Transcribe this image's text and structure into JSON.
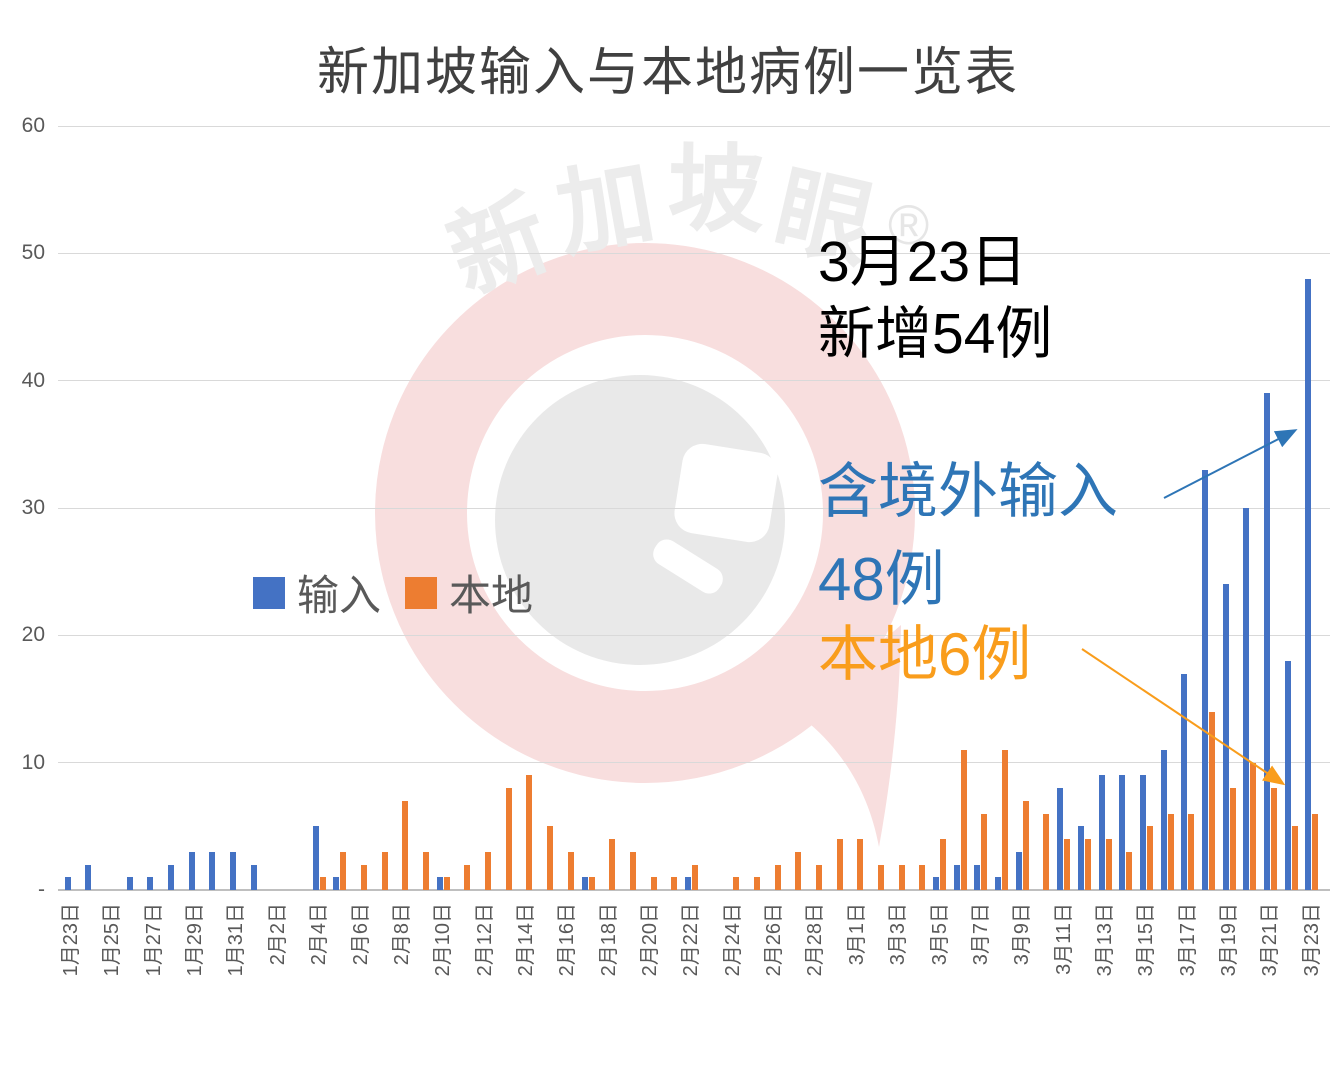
{
  "title": "新加坡输入与本地病例一览表",
  "colors": {
    "imported": "#4472C4",
    "local": "#ED7D31",
    "imported_annotation": "#2E75B6",
    "local_annotation": "#F99D1C",
    "axis_text": "#595959",
    "title_text": "#404040",
    "gridline": "#D9D9D9",
    "axis_line": "#BFBFBF",
    "watermark_pink": "#F8DEDE",
    "watermark_gray": "#E9E9E9",
    "watermark_text": "#ECECEC"
  },
  "legend": {
    "imported": "输入",
    "local": "本地"
  },
  "annotations": {
    "date_line1": "3月23日",
    "date_line2": "新增54例",
    "imported_line1": "含境外输入",
    "imported_line2": "48例",
    "local_line": "本地6例"
  },
  "watermark": {
    "char1": "新",
    "char2": "加",
    "char3": "坡",
    "char4": "眼",
    "registered": "®"
  },
  "chart_data": {
    "type": "bar",
    "title": "新加坡输入与本地病例一览表",
    "xlabel": "",
    "ylabel": "",
    "ylim": [
      0,
      60
    ],
    "grid": true,
    "legend_position": "center-left",
    "x_tick_every": 2,
    "yticks": [
      {
        "label": "60",
        "value": 60
      },
      {
        "label": "50",
        "value": 50
      },
      {
        "label": "40",
        "value": 40
      },
      {
        "label": "30",
        "value": 30
      },
      {
        "label": "20",
        "value": 20
      },
      {
        "label": "10",
        "value": 10
      },
      {
        "label": "-",
        "value": 0
      }
    ],
    "categories": [
      "1月23日",
      "1月24日",
      "1月25日",
      "1月26日",
      "1月27日",
      "1月28日",
      "1月29日",
      "1月30日",
      "1月31日",
      "2月1日",
      "2月2日",
      "2月3日",
      "2月4日",
      "2月5日",
      "2月6日",
      "2月7日",
      "2月8日",
      "2月9日",
      "2月10日",
      "2月11日",
      "2月12日",
      "2月13日",
      "2月14日",
      "2月15日",
      "2月16日",
      "2月17日",
      "2月18日",
      "2月19日",
      "2月20日",
      "2月21日",
      "2月22日",
      "2月23日",
      "2月24日",
      "2月25日",
      "2月26日",
      "2月27日",
      "2月28日",
      "2月29日",
      "3月1日",
      "3月2日",
      "3月3日",
      "3月4日",
      "3月5日",
      "3月6日",
      "3月7日",
      "3月8日",
      "3月9日",
      "3月10日",
      "3月11日",
      "3月12日",
      "3月13日",
      "3月14日",
      "3月15日",
      "3月16日",
      "3月17日",
      "3月18日",
      "3月19日",
      "3月20日",
      "3月21日",
      "3月22日",
      "3月23日"
    ],
    "series": [
      {
        "name": "输入",
        "values": [
          1,
          2,
          0,
          1,
          1,
          2,
          3,
          3,
          3,
          2,
          0,
          0,
          5,
          1,
          0,
          0,
          0,
          0,
          1,
          0,
          0,
          0,
          0,
          0,
          0,
          1,
          0,
          0,
          0,
          0,
          1,
          0,
          0,
          0,
          0,
          0,
          0,
          0,
          0,
          0,
          0,
          0,
          1,
          2,
          2,
          1,
          3,
          0,
          8,
          5,
          9,
          9,
          9,
          11,
          17,
          33,
          24,
          30,
          39,
          18,
          48
        ]
      },
      {
        "name": "本地",
        "values": [
          0,
          0,
          0,
          0,
          0,
          0,
          0,
          0,
          0,
          0,
          0,
          0,
          1,
          3,
          2,
          3,
          7,
          3,
          1,
          2,
          3,
          8,
          9,
          5,
          3,
          1,
          4,
          3,
          1,
          1,
          2,
          0,
          1,
          1,
          2,
          3,
          2,
          4,
          4,
          2,
          2,
          2,
          4,
          11,
          6,
          11,
          7,
          6,
          4,
          4,
          4,
          3,
          5,
          6,
          6,
          14,
          8,
          10,
          8,
          5,
          6
        ]
      }
    ]
  }
}
